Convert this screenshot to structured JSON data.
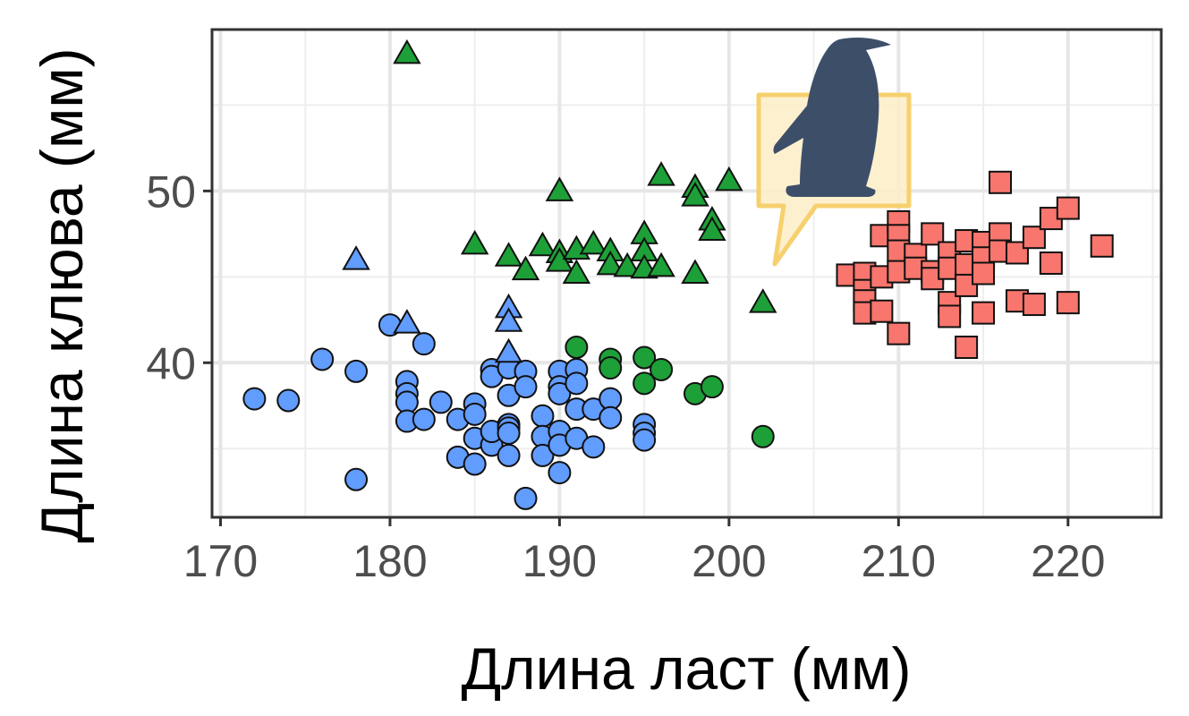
{
  "chart_data": {
    "type": "scatter",
    "title": "",
    "xlabel": "Длина ласт (мм)",
    "ylabel": "Длина клюва (мм)",
    "xlim": [
      169.5,
      225.5
    ],
    "ylim": [
      31,
      59.4
    ],
    "xticks": [
      170,
      180,
      190,
      200,
      210,
      220
    ],
    "yticks": [
      40,
      50
    ],
    "grid": true,
    "legend": "none",
    "logo_icon": "penguin-speech-bubble-logo",
    "series": [
      {
        "marker": "circle",
        "color": "#619CFF",
        "points": [
          [
            172,
            37.9
          ],
          [
            174,
            37.8
          ],
          [
            176,
            40.2
          ],
          [
            178,
            39.5
          ],
          [
            178,
            33.2
          ],
          [
            180,
            42.2
          ],
          [
            181,
            38.9
          ],
          [
            181,
            38.2
          ],
          [
            181,
            37.7
          ],
          [
            181,
            36.6
          ],
          [
            182,
            41.1
          ],
          [
            182,
            36.7
          ],
          [
            183,
            37.7
          ],
          [
            184,
            36.7
          ],
          [
            184,
            34.5
          ],
          [
            185,
            37.6
          ],
          [
            185,
            37.0
          ],
          [
            185,
            34.1
          ],
          [
            185,
            35.6
          ],
          [
            186,
            39.6
          ],
          [
            186,
            39.2
          ],
          [
            186,
            35.2
          ],
          [
            186,
            36.0
          ],
          [
            187,
            39.7
          ],
          [
            187,
            38.1
          ],
          [
            187,
            36.4
          ],
          [
            187,
            36.2
          ],
          [
            187,
            35.9
          ],
          [
            187,
            34.6
          ],
          [
            188,
            39.5
          ],
          [
            188,
            38.6
          ],
          [
            188,
            32.1
          ],
          [
            189,
            36.9
          ],
          [
            189,
            35.7
          ],
          [
            189,
            34.6
          ],
          [
            190,
            39.5
          ],
          [
            190,
            38.6
          ],
          [
            190,
            38.2
          ],
          [
            190,
            36.0
          ],
          [
            190,
            35.2
          ],
          [
            190,
            33.6
          ],
          [
            191,
            39.6
          ],
          [
            191,
            38.8
          ],
          [
            191,
            37.3
          ],
          [
            191,
            35.6
          ],
          [
            192,
            37.3
          ],
          [
            192,
            35.1
          ],
          [
            193,
            37.9
          ],
          [
            193,
            36.8
          ],
          [
            195,
            36.4
          ],
          [
            195,
            35.9
          ],
          [
            195,
            35.5
          ]
        ]
      },
      {
        "marker": "triangle",
        "color": "#619CFF",
        "points": [
          [
            178,
            46.0
          ],
          [
            181,
            42.3
          ],
          [
            187,
            43.2
          ],
          [
            187,
            42.4
          ],
          [
            187,
            40.6
          ]
        ]
      },
      {
        "marker": "circle",
        "color": "#1EA038",
        "points": [
          [
            191,
            40.9
          ],
          [
            193,
            40.2
          ],
          [
            193,
            39.7
          ],
          [
            195,
            40.3
          ],
          [
            195,
            38.8
          ],
          [
            196,
            39.6
          ],
          [
            198,
            38.2
          ],
          [
            199,
            38.6
          ],
          [
            202,
            35.7
          ]
        ]
      },
      {
        "marker": "triangle",
        "color": "#1EA038",
        "points": [
          [
            181,
            58.0
          ],
          [
            185,
            46.9
          ],
          [
            187,
            46.2
          ],
          [
            188,
            45.4
          ],
          [
            189,
            46.8
          ],
          [
            190,
            50.0
          ],
          [
            190,
            46.4
          ],
          [
            190,
            45.9
          ],
          [
            191,
            46.6
          ],
          [
            191,
            45.2
          ],
          [
            192,
            46.9
          ],
          [
            193,
            46.5
          ],
          [
            193,
            45.7
          ],
          [
            194,
            45.6
          ],
          [
            195,
            47.5
          ],
          [
            195,
            46.5
          ],
          [
            195,
            45.5
          ],
          [
            196,
            50.9
          ],
          [
            196,
            45.6
          ],
          [
            198,
            50.2
          ],
          [
            198,
            49.7
          ],
          [
            198,
            45.2
          ],
          [
            199,
            48.3
          ],
          [
            199,
            47.7
          ],
          [
            200,
            50.6
          ],
          [
            202,
            43.5
          ]
        ]
      },
      {
        "marker": "square",
        "color": "#F8766D",
        "points": [
          [
            207,
            45.1
          ],
          [
            208,
            45.2
          ],
          [
            208,
            44.2
          ],
          [
            208,
            43.6
          ],
          [
            208,
            42.9
          ],
          [
            209,
            47.4
          ],
          [
            209,
            45.0
          ],
          [
            209,
            43.0
          ],
          [
            210,
            48.2
          ],
          [
            210,
            47.4
          ],
          [
            210,
            46.5
          ],
          [
            210,
            45.3
          ],
          [
            210,
            41.7
          ],
          [
            211,
            46.3
          ],
          [
            211,
            45.5
          ],
          [
            212,
            47.5
          ],
          [
            212,
            45.3
          ],
          [
            212,
            44.9
          ],
          [
            213,
            46.4
          ],
          [
            213,
            45.5
          ],
          [
            213,
            43.5
          ],
          [
            213,
            42.7
          ],
          [
            214,
            47.1
          ],
          [
            214,
            45.7
          ],
          [
            214,
            44.5
          ],
          [
            214,
            40.9
          ],
          [
            215,
            47.0
          ],
          [
            215,
            46.1
          ],
          [
            215,
            45.2
          ],
          [
            215,
            42.9
          ],
          [
            216,
            50.5
          ],
          [
            216,
            47.5
          ],
          [
            216,
            46.5
          ],
          [
            217,
            46.4
          ],
          [
            217,
            43.6
          ],
          [
            218,
            47.3
          ],
          [
            218,
            43.4
          ],
          [
            219,
            48.4
          ],
          [
            219,
            45.8
          ],
          [
            220,
            49.0
          ],
          [
            220,
            43.5
          ],
          [
            222,
            46.8
          ]
        ]
      }
    ]
  }
}
